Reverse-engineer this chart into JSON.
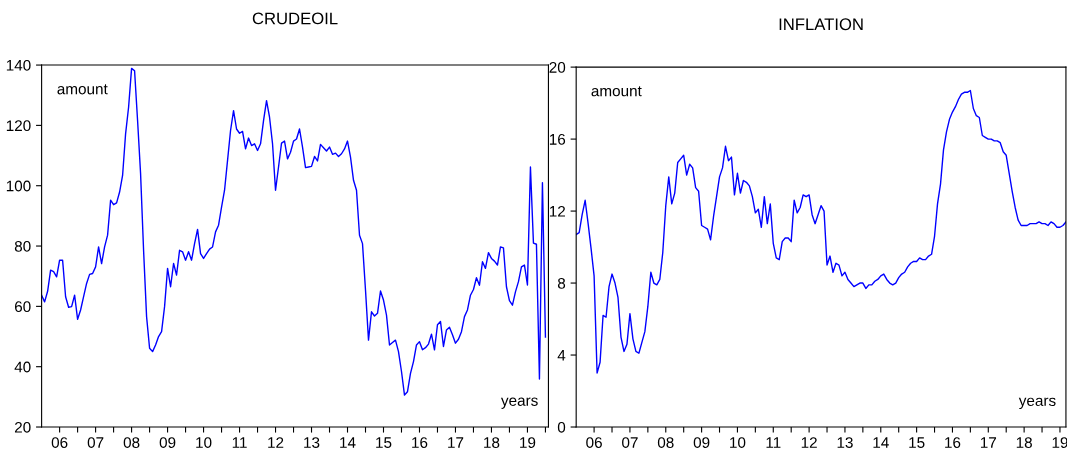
{
  "chart_data": [
    {
      "type": "line",
      "title": "CRUDEOIL",
      "ylabel": "amount",
      "xlabel": "years",
      "grid": false,
      "marker": "none",
      "line_style": "solid",
      "xlim": [
        "2006-01",
        "2020-02"
      ],
      "ylim": [
        20,
        140
      ],
      "yticks": [
        20,
        40,
        60,
        80,
        100,
        120,
        140
      ],
      "xticks": [
        {
          "value": "2006-07",
          "label": "06"
        },
        {
          "value": "2007-07",
          "label": "07"
        },
        {
          "value": "2008-07",
          "label": "08"
        },
        {
          "value": "2009-07",
          "label": "09"
        },
        {
          "value": "2010-07",
          "label": "10"
        },
        {
          "value": "2011-07",
          "label": "11"
        },
        {
          "value": "2012-07",
          "label": "12"
        },
        {
          "value": "2013-07",
          "label": "13"
        },
        {
          "value": "2014-07",
          "label": "14"
        },
        {
          "value": "2015-07",
          "label": "15"
        },
        {
          "value": "2016-07",
          "label": "16"
        },
        {
          "value": "2017-07",
          "label": "17"
        },
        {
          "value": "2018-07",
          "label": "18"
        },
        {
          "value": "2019-07",
          "label": "19"
        },
        {
          "value": "2007-01",
          "label": null
        },
        {
          "value": "2008-01",
          "label": null
        },
        {
          "value": "2009-01",
          "label": null
        },
        {
          "value": "2010-01",
          "label": null
        },
        {
          "value": "2011-01",
          "label": null
        },
        {
          "value": "2012-01",
          "label": null
        },
        {
          "value": "2013-01",
          "label": null
        },
        {
          "value": "2014-01",
          "label": null
        },
        {
          "value": "2015-01",
          "label": null
        },
        {
          "value": "2016-01",
          "label": null
        },
        {
          "value": "2017-01",
          "label": null
        },
        {
          "value": "2018-01",
          "label": null
        },
        {
          "value": "2019-01",
          "label": null
        },
        {
          "value": "2020-01",
          "label": null
        }
      ],
      "x": [
        "2006-01",
        "2006-02",
        "2006-03",
        "2006-04",
        "2006-05",
        "2006-06",
        "2006-07",
        "2006-08",
        "2006-09",
        "2006-10",
        "2006-11",
        "2006-12",
        "2007-01",
        "2007-02",
        "2007-03",
        "2007-04",
        "2007-05",
        "2007-06",
        "2007-07",
        "2007-08",
        "2007-09",
        "2007-10",
        "2007-11",
        "2007-12",
        "2008-01",
        "2008-02",
        "2008-03",
        "2008-04",
        "2008-05",
        "2008-06",
        "2008-07",
        "2008-08",
        "2008-09",
        "2008-10",
        "2008-11",
        "2008-12",
        "2009-01",
        "2009-02",
        "2009-03",
        "2009-04",
        "2009-05",
        "2009-06",
        "2009-07",
        "2009-08",
        "2009-09",
        "2009-10",
        "2009-11",
        "2009-12",
        "2010-01",
        "2010-02",
        "2010-03",
        "2010-04",
        "2010-05",
        "2010-06",
        "2010-07",
        "2010-08",
        "2010-09",
        "2010-10",
        "2010-11",
        "2010-12",
        "2011-01",
        "2011-02",
        "2011-03",
        "2011-04",
        "2011-05",
        "2011-06",
        "2011-07",
        "2011-08",
        "2011-09",
        "2011-10",
        "2011-11",
        "2011-12",
        "2012-01",
        "2012-02",
        "2012-03",
        "2012-04",
        "2012-05",
        "2012-06",
        "2012-07",
        "2012-08",
        "2012-09",
        "2012-10",
        "2012-11",
        "2012-12",
        "2013-01",
        "2013-02",
        "2013-03",
        "2013-04",
        "2013-05",
        "2013-06",
        "2013-07",
        "2013-08",
        "2013-09",
        "2013-10",
        "2013-11",
        "2013-12",
        "2014-01",
        "2014-02",
        "2014-03",
        "2014-04",
        "2014-05",
        "2014-06",
        "2014-07",
        "2014-08",
        "2014-09",
        "2014-10",
        "2014-11",
        "2014-12",
        "2015-01",
        "2015-02",
        "2015-03",
        "2015-04",
        "2015-05",
        "2015-06",
        "2015-07",
        "2015-08",
        "2015-09",
        "2015-10",
        "2015-11",
        "2015-12",
        "2016-01",
        "2016-02",
        "2016-03",
        "2016-04",
        "2016-05",
        "2016-06",
        "2016-07",
        "2016-08",
        "2016-09",
        "2016-10",
        "2016-11",
        "2016-12",
        "2017-01",
        "2017-02",
        "2017-03",
        "2017-04",
        "2017-05",
        "2017-06",
        "2017-07",
        "2017-08",
        "2017-09",
        "2017-10",
        "2017-11",
        "2017-12",
        "2018-01",
        "2018-02",
        "2018-03",
        "2018-04",
        "2018-05",
        "2018-06",
        "2018-07",
        "2018-08",
        "2018-09",
        "2018-10",
        "2018-11",
        "2018-12",
        "2019-01",
        "2019-02",
        "2019-03",
        "2019-04",
        "2019-05",
        "2019-06",
        "2019-07",
        "2019-08",
        "2019-09",
        "2019-10",
        "2019-11",
        "2019-12",
        "2020-01"
      ],
      "series": [
        {
          "color": "#0000ff",
          "values": [
            63.7,
            61.5,
            65,
            72,
            71.5,
            69.8,
            75.3,
            75.3,
            63.2,
            59.7,
            59.9,
            63.7,
            55.7,
            58.8,
            63.2,
            67.6,
            70.6,
            70.9,
            73.1,
            79.7,
            74.2,
            79.7,
            83.6,
            95.2,
            93.7,
            94.3,
            97.9,
            103.4,
            117.2,
            126,
            138.9,
            138.1,
            121.6,
            104,
            78.6,
            56.6,
            46.1,
            45,
            47.2,
            50,
            51.6,
            59.9,
            72.6,
            66.5,
            74.2,
            70.4,
            78.6,
            78.1,
            75.3,
            78.1,
            75.3,
            80.8,
            85.5,
            77.5,
            75.9,
            77.5,
            79,
            79.7,
            84.7,
            86.9,
            92.9,
            98.5,
            108.4,
            118.3,
            124.9,
            118.8,
            117.4,
            118,
            112.2,
            115.8,
            113.3,
            113.9,
            111.7,
            113.9,
            121.6,
            128.2,
            122.7,
            113.9,
            98.5,
            106.2,
            114.1,
            114.8,
            108.9,
            111.1,
            114.8,
            115.5,
            118.8,
            112.8,
            106,
            106.2,
            106.4,
            109.7,
            108.2,
            113.7,
            112.6,
            111.5,
            112.8,
            110.4,
            110.8,
            109.7,
            110.6,
            112.2,
            114.8,
            109.5,
            101.8,
            98.5,
            83.6,
            80.8,
            65.4,
            48.8,
            58.2,
            56.8,
            57.7,
            65.1,
            62.1,
            57.1,
            47.2,
            48,
            48.8,
            45,
            38.4,
            30.6,
            31.7,
            37.8,
            41.7,
            47.2,
            48.3,
            45.6,
            46.3,
            47.5,
            50.8,
            45.6,
            53.9,
            55,
            46.7,
            52.2,
            53.1,
            50.6,
            47.8,
            49.1,
            51.6,
            56.6,
            58.8,
            63.7,
            65.6,
            69.5,
            67,
            74.8,
            72.6,
            77.8,
            75.9,
            75,
            73.7,
            79.7,
            79.4,
            66.5,
            61.9,
            60.4,
            64.8,
            68.2,
            73.1,
            73.7,
            67.1,
            106.2,
            81,
            80.6,
            35.9,
            101,
            49.8
          ]
        }
      ]
    },
    {
      "type": "line",
      "title": "INFLATION",
      "ylabel": "amount",
      "xlabel": "years",
      "grid": false,
      "marker": "none",
      "line_style": "solid",
      "xlim": [
        "2006-01",
        "2019-09"
      ],
      "ylim": [
        0,
        20
      ],
      "yticks": [
        0,
        4,
        8,
        12,
        16,
        20
      ],
      "xticks": [
        {
          "value": "2006-07",
          "label": "06"
        },
        {
          "value": "2007-07",
          "label": "07"
        },
        {
          "value": "2008-07",
          "label": "08"
        },
        {
          "value": "2009-07",
          "label": "09"
        },
        {
          "value": "2010-07",
          "label": "10"
        },
        {
          "value": "2011-07",
          "label": "11"
        },
        {
          "value": "2012-07",
          "label": "12"
        },
        {
          "value": "2013-07",
          "label": "13"
        },
        {
          "value": "2014-07",
          "label": "14"
        },
        {
          "value": "2015-07",
          "label": "15"
        },
        {
          "value": "2016-07",
          "label": "16"
        },
        {
          "value": "2017-07",
          "label": "17"
        },
        {
          "value": "2018-07",
          "label": "18"
        },
        {
          "value": "2019-07",
          "label": "19"
        },
        {
          "value": "2007-01",
          "label": null
        },
        {
          "value": "2008-01",
          "label": null
        },
        {
          "value": "2009-01",
          "label": null
        },
        {
          "value": "2010-01",
          "label": null
        },
        {
          "value": "2011-01",
          "label": null
        },
        {
          "value": "2012-01",
          "label": null
        },
        {
          "value": "2013-01",
          "label": null
        },
        {
          "value": "2014-01",
          "label": null
        },
        {
          "value": "2015-01",
          "label": null
        },
        {
          "value": "2016-01",
          "label": null
        },
        {
          "value": "2017-01",
          "label": null
        },
        {
          "value": "2018-01",
          "label": null
        },
        {
          "value": "2019-01",
          "label": null
        }
      ],
      "x": [
        "2006-01",
        "2006-02",
        "2006-03",
        "2006-04",
        "2006-05",
        "2006-06",
        "2006-07",
        "2006-08",
        "2006-09",
        "2006-10",
        "2006-11",
        "2006-12",
        "2007-01",
        "2007-02",
        "2007-03",
        "2007-04",
        "2007-05",
        "2007-06",
        "2007-07",
        "2007-08",
        "2007-09",
        "2007-10",
        "2007-11",
        "2007-12",
        "2008-01",
        "2008-02",
        "2008-03",
        "2008-04",
        "2008-05",
        "2008-06",
        "2008-07",
        "2008-08",
        "2008-09",
        "2008-10",
        "2008-11",
        "2008-12",
        "2009-01",
        "2009-02",
        "2009-03",
        "2009-04",
        "2009-05",
        "2009-06",
        "2009-07",
        "2009-08",
        "2009-09",
        "2009-10",
        "2009-11",
        "2009-12",
        "2010-01",
        "2010-02",
        "2010-03",
        "2010-04",
        "2010-05",
        "2010-06",
        "2010-07",
        "2010-08",
        "2010-09",
        "2010-10",
        "2010-11",
        "2010-12",
        "2011-01",
        "2011-02",
        "2011-03",
        "2011-04",
        "2011-05",
        "2011-06",
        "2011-07",
        "2011-08",
        "2011-09",
        "2011-10",
        "2011-11",
        "2011-12",
        "2012-01",
        "2012-02",
        "2012-03",
        "2012-04",
        "2012-05",
        "2012-06",
        "2012-07",
        "2012-08",
        "2012-09",
        "2012-10",
        "2012-11",
        "2012-12",
        "2013-01",
        "2013-02",
        "2013-03",
        "2013-04",
        "2013-05",
        "2013-06",
        "2013-07",
        "2013-08",
        "2013-09",
        "2013-10",
        "2013-11",
        "2013-12",
        "2014-01",
        "2014-02",
        "2014-03",
        "2014-04",
        "2014-05",
        "2014-06",
        "2014-07",
        "2014-08",
        "2014-09",
        "2014-10",
        "2014-11",
        "2014-12",
        "2015-01",
        "2015-02",
        "2015-03",
        "2015-04",
        "2015-05",
        "2015-06",
        "2015-07",
        "2015-08",
        "2015-09",
        "2015-10",
        "2015-11",
        "2015-12",
        "2016-01",
        "2016-02",
        "2016-03",
        "2016-04",
        "2016-05",
        "2016-06",
        "2016-07",
        "2016-08",
        "2016-09",
        "2016-10",
        "2016-11",
        "2016-12",
        "2017-01",
        "2017-02",
        "2017-03",
        "2017-04",
        "2017-05",
        "2017-06",
        "2017-07",
        "2017-08",
        "2017-09",
        "2017-10",
        "2017-11",
        "2017-12",
        "2018-01",
        "2018-02",
        "2018-03",
        "2018-04",
        "2018-05",
        "2018-06",
        "2018-07",
        "2018-08",
        "2018-09",
        "2018-10",
        "2018-11",
        "2018-12",
        "2019-01",
        "2019-02",
        "2019-03",
        "2019-04",
        "2019-05",
        "2019-06",
        "2019-07",
        "2019-08",
        "2019-09"
      ],
      "series": [
        {
          "color": "#0000ff",
          "values": [
            10.7,
            10.8,
            11.8,
            12.6,
            11.3,
            9.9,
            8.4,
            3.0,
            3.6,
            6.2,
            6.1,
            7.8,
            8.5,
            8.0,
            7.2,
            5.0,
            4.2,
            4.6,
            6.3,
            4.9,
            4.2,
            4.1,
            4.7,
            5.3,
            6.7,
            8.6,
            8.0,
            7.9,
            8.2,
            9.7,
            12.3,
            13.9,
            12.4,
            13.0,
            14.7,
            14.9,
            15.1,
            14.0,
            14.6,
            14.4,
            13.3,
            13.1,
            11.2,
            11.1,
            11.0,
            10.4,
            11.7,
            12.8,
            13.9,
            14.4,
            15.6,
            14.8,
            15.0,
            12.9,
            14.1,
            13.0,
            13.7,
            13.6,
            13.4,
            12.8,
            11.9,
            12.1,
            11.1,
            12.8,
            11.3,
            12.4,
            10.2,
            9.4,
            9.3,
            10.3,
            10.5,
            10.5,
            10.3,
            12.6,
            11.9,
            12.2,
            12.9,
            12.8,
            12.9,
            11.8,
            11.3,
            11.8,
            12.3,
            12.0,
            9.0,
            9.5,
            8.6,
            9.1,
            9.0,
            8.4,
            8.6,
            8.2,
            8.0,
            7.8,
            7.9,
            8.0,
            8.0,
            7.7,
            7.9,
            7.9,
            8.1,
            8.2,
            8.4,
            8.5,
            8.2,
            8.0,
            7.9,
            8.0,
            8.3,
            8.5,
            8.6,
            8.9,
            9.1,
            9.2,
            9.2,
            9.4,
            9.3,
            9.3,
            9.5,
            9.6,
            10.6,
            12.4,
            13.5,
            15.4,
            16.4,
            17.1,
            17.5,
            17.8,
            18.2,
            18.5,
            18.6,
            18.6,
            18.7,
            17.7,
            17.3,
            17.2,
            16.2,
            16.1,
            16.0,
            16.0,
            15.9,
            15.9,
            15.8,
            15.3,
            15.1,
            14.1,
            13.1,
            12.2,
            11.5,
            11.2,
            11.2,
            11.2,
            11.3,
            11.3,
            11.3,
            11.4,
            11.3,
            11.3,
            11.2,
            11.4,
            11.3,
            11.1,
            11.1,
            11.2,
            11.4
          ]
        }
      ]
    }
  ]
}
